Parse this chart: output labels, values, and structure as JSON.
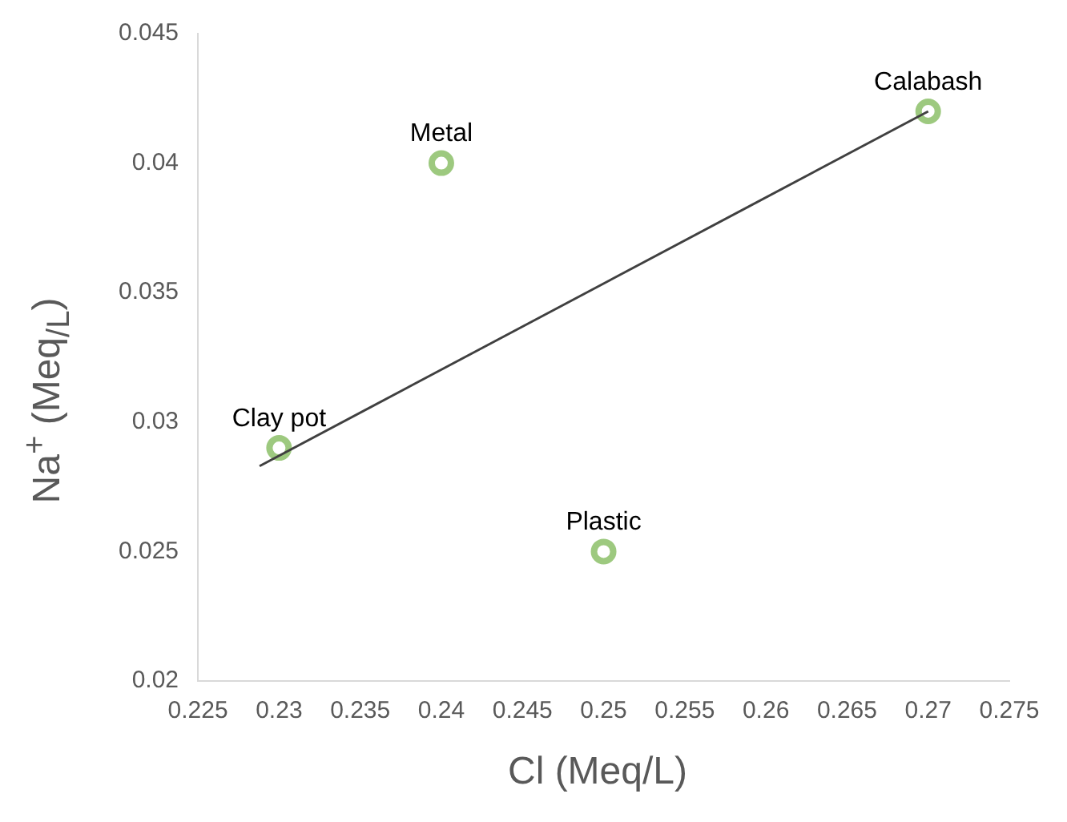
{
  "chart_data": {
    "type": "scatter",
    "xlabel": "Cl (Meq/L)",
    "ylabel": "Na$^{+}$ (Meq$_{/L}$)",
    "xlim": [
      0.225,
      0.275
    ],
    "xticks": [
      0.225,
      0.23,
      0.235,
      0.24,
      0.245,
      0.25,
      0.255,
      0.26,
      0.265,
      0.27,
      0.275
    ],
    "ylim": [
      0.02,
      0.045
    ],
    "yticks": [
      0.02,
      0.025,
      0.03,
      0.035,
      0.04,
      0.045
    ],
    "grid": false,
    "legend": false,
    "marker": "circle",
    "series": [
      {
        "color": "#9dc97f",
        "x": [
          0.23,
          0.24,
          0.25,
          0.27
        ],
        "values": [
          0.029,
          0.04,
          0.025,
          0.042
        ]
      },
      {
        "type": "line",
        "color": "#404040",
        "marker": "none",
        "x": [
          0.2288,
          0.27
        ],
        "values": [
          0.0283,
          0.042
        ]
      }
    ],
    "annotations": [
      {
        "text": "Clay pot",
        "x": 0.23,
        "y": 0.029
      },
      {
        "text": "Metal",
        "x": 0.24,
        "y": 0.04
      },
      {
        "text": "Plastic",
        "x": 0.25,
        "y": 0.025
      },
      {
        "text": "Calabash",
        "x": 0.27,
        "y": 0.042
      }
    ]
  }
}
